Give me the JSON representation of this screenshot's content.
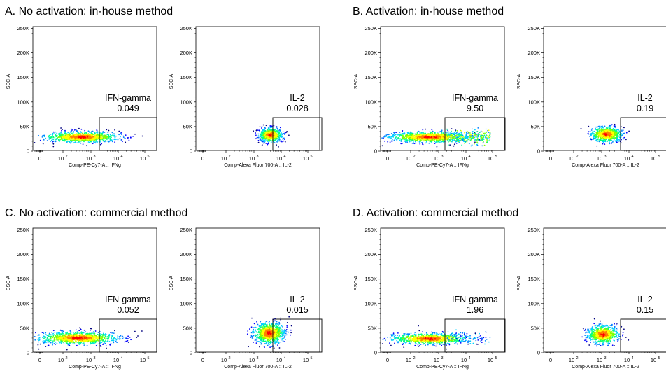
{
  "colors": {
    "density": [
      "#00007f",
      "#0000ff",
      "#0080ff",
      "#00d0ff",
      "#00ff80",
      "#80ff00",
      "#ffff00",
      "#ff8000",
      "#ff0000"
    ]
  },
  "chart_data": [
    {
      "type": "scatter",
      "panel_title": "A. No activation: in-house method",
      "plots": [
        {
          "xlabel": "Comp-PE-Cy7-A :: IFNg",
          "ylabel": "SSC-A",
          "gate_name": "IFN-gamma",
          "gate_value": "0.049",
          "x_ticks": [
            "0",
            "10",
            "10",
            "10",
            "10"
          ],
          "x_exponents": [
            "",
            "2",
            "3",
            "4",
            "5"
          ],
          "y_ticks": [
            "0",
            "50K",
            "100K",
            "150K",
            "200K",
            "250K"
          ],
          "ylim": [
            0,
            262144
          ]
        },
        {
          "xlabel": "Comp-Alexa Fluor 700-A :: IL-2",
          "ylabel": "SSC-A",
          "gate_name": "IL-2",
          "gate_value": "0.028",
          "x_ticks": [
            "0",
            "10",
            "10",
            "10",
            "10"
          ],
          "x_exponents": [
            "",
            "2",
            "3",
            "4",
            "5"
          ],
          "y_ticks": [
            "0",
            "50K",
            "100K",
            "150K",
            "200K",
            "250K"
          ],
          "ylim": [
            0,
            262144
          ]
        }
      ]
    },
    {
      "type": "scatter",
      "panel_title": "B. Activation: in-house method",
      "plots": [
        {
          "xlabel": "Comp-PE-Cy7-A :: IFNg",
          "ylabel": "SSC-A",
          "gate_name": "IFN-gamma",
          "gate_value": "9.50",
          "x_ticks": [
            "0",
            "10",
            "10",
            "10",
            "10"
          ],
          "x_exponents": [
            "",
            "2",
            "3",
            "4",
            "5"
          ],
          "y_ticks": [
            "0",
            "50K",
            "100K",
            "150K",
            "200K",
            "250K"
          ],
          "ylim": [
            0,
            262144
          ]
        },
        {
          "xlabel": "Comp-Alexa Fluor 700-A :: IL-2",
          "ylabel": "SSC-A",
          "gate_name": "IL-2",
          "gate_value": "0.19",
          "x_ticks": [
            "0",
            "10",
            "10",
            "10",
            "10"
          ],
          "x_exponents": [
            "",
            "2",
            "3",
            "4",
            "5"
          ],
          "y_ticks": [
            "0",
            "50K",
            "100K",
            "150K",
            "200K",
            "250K"
          ],
          "ylim": [
            0,
            262144
          ]
        }
      ]
    },
    {
      "type": "scatter",
      "panel_title": "C. No activation: commercial method",
      "plots": [
        {
          "xlabel": "Comp-PE-Cy7-A :: IFNg",
          "ylabel": "SSC-A",
          "gate_name": "IFN-gamma",
          "gate_value": "0.052",
          "x_ticks": [
            "0",
            "10",
            "10",
            "10",
            "10"
          ],
          "x_exponents": [
            "",
            "2",
            "3",
            "4",
            "5"
          ],
          "y_ticks": [
            "0",
            "50K",
            "100K",
            "150K",
            "200K",
            "250K"
          ],
          "ylim": [
            0,
            262144
          ]
        },
        {
          "xlabel": "Comp-Alexa Fluor 700-A :: IL-2",
          "ylabel": "SSC-A",
          "gate_name": "IL-2",
          "gate_value": "0.015",
          "x_ticks": [
            "0",
            "10",
            "10",
            "10",
            "10"
          ],
          "x_exponents": [
            "",
            "2",
            "3",
            "4",
            "5"
          ],
          "y_ticks": [
            "0",
            "50K",
            "100K",
            "150K",
            "200K",
            "250K"
          ],
          "ylim": [
            0,
            262144
          ]
        }
      ]
    },
    {
      "type": "scatter",
      "panel_title": "D. Activation: commercial method",
      "plots": [
        {
          "xlabel": "Comp-PE-Cy7-A :: IFNg",
          "ylabel": "SSC-A",
          "gate_name": "IFN-gamma",
          "gate_value": "1.96",
          "x_ticks": [
            "0",
            "10",
            "10",
            "10",
            "10"
          ],
          "x_exponents": [
            "",
            "2",
            "3",
            "4",
            "5"
          ],
          "y_ticks": [
            "0",
            "50K",
            "100K",
            "150K",
            "200K",
            "250K"
          ],
          "ylim": [
            0,
            262144
          ]
        },
        {
          "xlabel": "Comp-Alexa Fluor 700-A :: IL-2",
          "ylabel": "SSC-A",
          "gate_name": "IL-2",
          "gate_value": "0.15",
          "x_ticks": [
            "0",
            "10",
            "10",
            "10",
            "10"
          ],
          "x_exponents": [
            "",
            "2",
            "3",
            "4",
            "5"
          ],
          "y_ticks": [
            "0",
            "50K",
            "100K",
            "150K",
            "200K",
            "250K"
          ],
          "ylim": [
            0,
            262144
          ]
        }
      ]
    }
  ]
}
